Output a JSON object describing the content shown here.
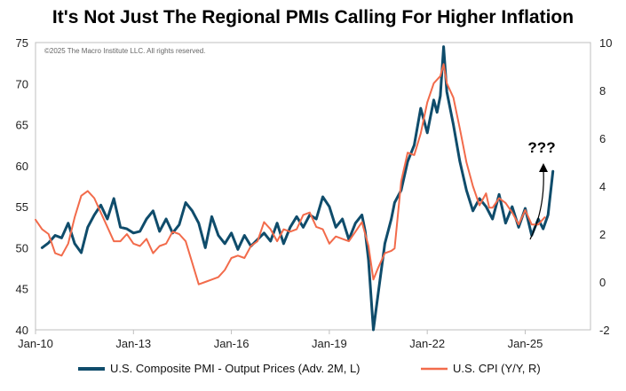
{
  "chart_data": {
    "type": "line",
    "title": "It's Not Just The Regional PMIs Calling For Higher Inflation",
    "copyright": "©2025 The Macro Institute LLC. All rights reserved.",
    "annotation": "???",
    "x_ticks": [
      "Jan-10",
      "Jan-13",
      "Jan-16",
      "Jan-19",
      "Jan-22",
      "Jan-25"
    ],
    "x_range": [
      2010.0,
      2027.0
    ],
    "y_left": {
      "range": [
        40,
        75
      ],
      "ticks": [
        40,
        45,
        50,
        55,
        60,
        65,
        70,
        75
      ]
    },
    "y_right": {
      "range": [
        -2,
        10
      ],
      "ticks": [
        -2,
        0,
        2,
        4,
        6,
        8,
        10
      ]
    },
    "series": [
      {
        "name": "U.S. Composite PMI - Output Prices (Adv. 2M, L)",
        "axis": "left",
        "color": "#0f4c6b",
        "points": [
          [
            2010.2,
            50.0
          ],
          [
            2010.4,
            50.6
          ],
          [
            2010.6,
            51.5
          ],
          [
            2010.8,
            51.2
          ],
          [
            2011.0,
            53.0
          ],
          [
            2011.2,
            50.5
          ],
          [
            2011.4,
            49.4
          ],
          [
            2011.6,
            52.5
          ],
          [
            2011.8,
            54.0
          ],
          [
            2012.0,
            55.2
          ],
          [
            2012.2,
            53.5
          ],
          [
            2012.4,
            56.0
          ],
          [
            2012.6,
            52.5
          ],
          [
            2012.8,
            52.3
          ],
          [
            2013.0,
            51.8
          ],
          [
            2013.2,
            52.0
          ],
          [
            2013.4,
            53.5
          ],
          [
            2013.6,
            54.5
          ],
          [
            2013.8,
            52.0
          ],
          [
            2014.0,
            53.5
          ],
          [
            2014.2,
            51.8
          ],
          [
            2014.4,
            52.8
          ],
          [
            2014.6,
            55.5
          ],
          [
            2014.8,
            54.5
          ],
          [
            2015.0,
            53.0
          ],
          [
            2015.2,
            50.0
          ],
          [
            2015.4,
            53.8
          ],
          [
            2015.6,
            51.5
          ],
          [
            2015.8,
            50.5
          ],
          [
            2016.0,
            51.8
          ],
          [
            2016.2,
            49.8
          ],
          [
            2016.4,
            51.5
          ],
          [
            2016.6,
            50.2
          ],
          [
            2016.8,
            51.0
          ],
          [
            2017.0,
            51.8
          ],
          [
            2017.2,
            50.8
          ],
          [
            2017.4,
            53.0
          ],
          [
            2017.6,
            50.5
          ],
          [
            2017.8,
            52.5
          ],
          [
            2018.0,
            53.8
          ],
          [
            2018.2,
            52.5
          ],
          [
            2018.4,
            54.0
          ],
          [
            2018.6,
            53.5
          ],
          [
            2018.8,
            56.2
          ],
          [
            2019.0,
            55.0
          ],
          [
            2019.2,
            52.5
          ],
          [
            2019.4,
            53.5
          ],
          [
            2019.6,
            51.0
          ],
          [
            2019.8,
            53.0
          ],
          [
            2020.0,
            54.0
          ],
          [
            2020.1,
            52.0
          ],
          [
            2020.2,
            48.5
          ],
          [
            2020.35,
            40.0
          ],
          [
            2020.5,
            44.5
          ],
          [
            2020.7,
            50.5
          ],
          [
            2020.9,
            53.5
          ],
          [
            2021.0,
            55.5
          ],
          [
            2021.2,
            57.0
          ],
          [
            2021.4,
            60.5
          ],
          [
            2021.6,
            62.5
          ],
          [
            2021.8,
            67.0
          ],
          [
            2022.0,
            64.0
          ],
          [
            2022.2,
            68.0
          ],
          [
            2022.3,
            66.5
          ],
          [
            2022.4,
            68.5
          ],
          [
            2022.5,
            74.5
          ],
          [
            2022.6,
            69.0
          ],
          [
            2022.8,
            65.0
          ],
          [
            2023.0,
            60.5
          ],
          [
            2023.2,
            57.0
          ],
          [
            2023.4,
            54.5
          ],
          [
            2023.6,
            56.0
          ],
          [
            2023.8,
            55.0
          ],
          [
            2024.0,
            53.5
          ],
          [
            2024.2,
            56.5
          ],
          [
            2024.4,
            53.0
          ],
          [
            2024.6,
            55.0
          ],
          [
            2024.8,
            52.5
          ],
          [
            2025.0,
            54.8
          ],
          [
            2025.2,
            51.5
          ],
          [
            2025.4,
            53.5
          ],
          [
            2025.55,
            52.3
          ],
          [
            2025.7,
            54.0
          ],
          [
            2025.85,
            59.3
          ]
        ]
      },
      {
        "name": "U.S. CPI (Y/Y, R)",
        "axis": "right",
        "color": "#f26b4b",
        "points": [
          [
            2010.0,
            2.6
          ],
          [
            2010.2,
            2.2
          ],
          [
            2010.4,
            2.0
          ],
          [
            2010.6,
            1.2
          ],
          [
            2010.8,
            1.1
          ],
          [
            2011.0,
            1.6
          ],
          [
            2011.2,
            2.7
          ],
          [
            2011.4,
            3.6
          ],
          [
            2011.6,
            3.8
          ],
          [
            2011.8,
            3.5
          ],
          [
            2012.0,
            2.9
          ],
          [
            2012.2,
            2.3
          ],
          [
            2012.4,
            1.7
          ],
          [
            2012.6,
            1.7
          ],
          [
            2012.8,
            2.0
          ],
          [
            2013.0,
            1.6
          ],
          [
            2013.2,
            1.5
          ],
          [
            2013.4,
            1.8
          ],
          [
            2013.6,
            1.2
          ],
          [
            2013.8,
            1.5
          ],
          [
            2014.0,
            1.6
          ],
          [
            2014.2,
            2.1
          ],
          [
            2014.4,
            2.0
          ],
          [
            2014.6,
            1.7
          ],
          [
            2014.8,
            0.8
          ],
          [
            2015.0,
            -0.1
          ],
          [
            2015.2,
            0.0
          ],
          [
            2015.4,
            0.1
          ],
          [
            2015.6,
            0.2
          ],
          [
            2015.8,
            0.5
          ],
          [
            2016.0,
            1.0
          ],
          [
            2016.2,
            1.1
          ],
          [
            2016.4,
            1.0
          ],
          [
            2016.6,
            1.5
          ],
          [
            2016.8,
            1.7
          ],
          [
            2017.0,
            2.5
          ],
          [
            2017.2,
            2.2
          ],
          [
            2017.4,
            1.7
          ],
          [
            2017.6,
            2.2
          ],
          [
            2017.8,
            2.1
          ],
          [
            2018.0,
            2.2
          ],
          [
            2018.2,
            2.8
          ],
          [
            2018.4,
            2.9
          ],
          [
            2018.6,
            2.3
          ],
          [
            2018.8,
            2.2
          ],
          [
            2019.0,
            1.6
          ],
          [
            2019.2,
            1.9
          ],
          [
            2019.4,
            1.8
          ],
          [
            2019.6,
            1.7
          ],
          [
            2019.8,
            2.1
          ],
          [
            2020.0,
            2.5
          ],
          [
            2020.2,
            1.5
          ],
          [
            2020.35,
            0.1
          ],
          [
            2020.5,
            0.6
          ],
          [
            2020.7,
            1.2
          ],
          [
            2020.9,
            1.3
          ],
          [
            2021.0,
            1.4
          ],
          [
            2021.2,
            4.2
          ],
          [
            2021.4,
            5.4
          ],
          [
            2021.6,
            5.3
          ],
          [
            2021.8,
            6.2
          ],
          [
            2022.0,
            7.5
          ],
          [
            2022.2,
            8.3
          ],
          [
            2022.4,
            8.6
          ],
          [
            2022.5,
            9.1
          ],
          [
            2022.6,
            8.3
          ],
          [
            2022.8,
            7.7
          ],
          [
            2023.0,
            6.4
          ],
          [
            2023.2,
            5.0
          ],
          [
            2023.4,
            4.0
          ],
          [
            2023.6,
            3.2
          ],
          [
            2023.8,
            3.7
          ],
          [
            2023.9,
            3.1
          ],
          [
            2024.0,
            3.1
          ],
          [
            2024.2,
            3.5
          ],
          [
            2024.4,
            3.3
          ],
          [
            2024.6,
            2.9
          ],
          [
            2024.8,
            2.4
          ],
          [
            2025.0,
            3.0
          ],
          [
            2025.2,
            2.4
          ],
          [
            2025.4,
            2.4
          ],
          [
            2025.6,
            2.7
          ]
        ]
      }
    ]
  }
}
